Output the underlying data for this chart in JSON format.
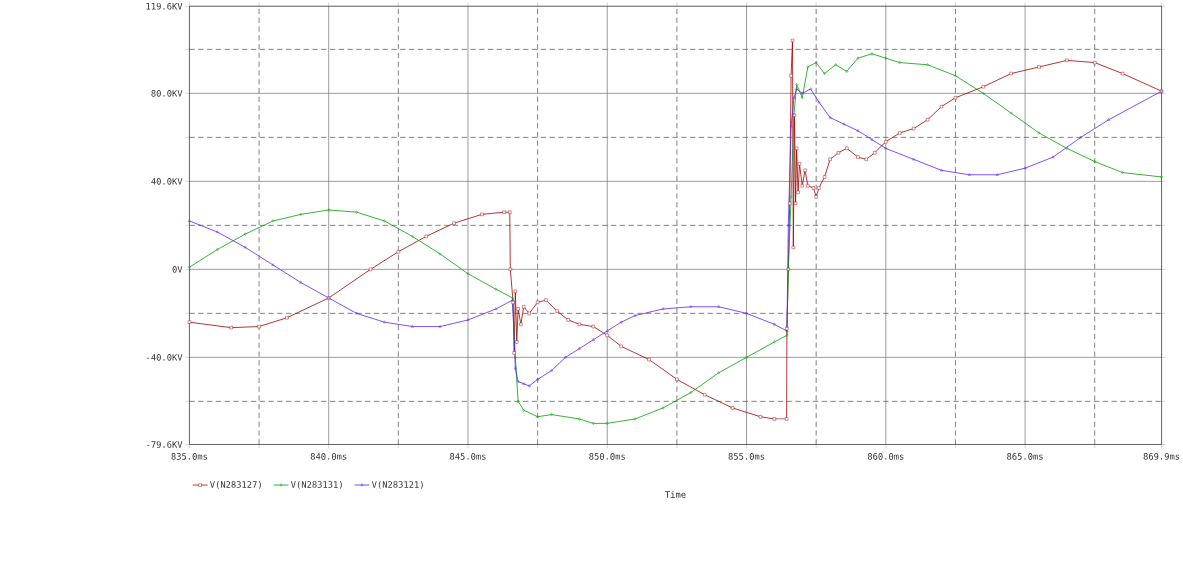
{
  "chart_data": {
    "type": "line",
    "xlabel": "Time",
    "grid": true,
    "legend": "bottom left",
    "xlim": [
      835.0,
      869.9
    ],
    "ylim": [
      -79.6,
      119.6
    ],
    "xticks": [
      {
        "value": 835.0,
        "label": "835.0ms"
      },
      {
        "value": 837.5,
        "label": null
      },
      {
        "value": 840.0,
        "label": "840.0ms"
      },
      {
        "value": 842.5,
        "label": null
      },
      {
        "value": 845.0,
        "label": "845.0ms"
      },
      {
        "value": 847.5,
        "label": null
      },
      {
        "value": 850.0,
        "label": "850.0ms"
      },
      {
        "value": 852.5,
        "label": null
      },
      {
        "value": 855.0,
        "label": "855.0ms"
      },
      {
        "value": 857.5,
        "label": null
      },
      {
        "value": 860.0,
        "label": "860.0ms"
      },
      {
        "value": 862.5,
        "label": null
      },
      {
        "value": 865.0,
        "label": "865.0ms"
      },
      {
        "value": 867.5,
        "label": null
      },
      {
        "value": 869.9,
        "label": "869.9ms"
      }
    ],
    "yticks": [
      {
        "value": -79.6,
        "label": "-79.6KV"
      },
      {
        "value": -60,
        "label": null
      },
      {
        "value": -40,
        "label": "-40.0KV"
      },
      {
        "value": -20,
        "label": null
      },
      {
        "value": 0,
        "label": "0V"
      },
      {
        "value": 20,
        "label": null
      },
      {
        "value": 40,
        "label": "40.0KV"
      },
      {
        "value": 60,
        "label": null
      },
      {
        "value": 80,
        "label": "80.0KV"
      },
      {
        "value": 100,
        "label": null
      },
      {
        "value": 119.6,
        "label": "119.6KV"
      }
    ],
    "series": [
      {
        "name": "V(N283127)",
        "color": "#a00000",
        "marker": "square",
        "x": [
          835.0,
          836.5,
          837.5,
          838.5,
          840.0,
          841.5,
          842.5,
          843.5,
          844.5,
          845.5,
          846.3,
          846.5,
          846.52,
          846.62,
          846.66,
          846.7,
          846.75,
          846.8,
          846.9,
          847.0,
          847.2,
          847.5,
          847.8,
          848.2,
          848.6,
          849.0,
          849.5,
          850.0,
          850.5,
          851.5,
          852.5,
          853.5,
          854.5,
          855.5,
          856.0,
          856.44,
          856.45,
          856.5,
          856.55,
          856.6,
          856.65,
          856.68,
          856.72,
          856.76,
          856.8,
          856.85,
          856.9,
          857.0,
          857.1,
          857.2,
          857.4,
          857.5,
          857.6,
          857.8,
          858.0,
          858.3,
          858.6,
          859.0,
          859.3,
          859.6,
          860.0,
          860.5,
          861.0,
          861.5,
          862.0,
          862.5,
          863.5,
          864.5,
          865.5,
          866.5,
          867.5,
          868.5,
          869.9
        ],
        "values": [
          -24,
          -26.5,
          -26,
          -22,
          -13,
          0,
          8,
          15,
          21,
          25,
          26,
          26,
          0,
          -15,
          -38,
          -10,
          -33,
          -18,
          -25,
          -17,
          -20,
          -15,
          -14,
          -19,
          -23,
          -25,
          -26,
          -30,
          -35,
          -41,
          -50,
          -57,
          -63,
          -67,
          -68,
          -68,
          -27,
          0,
          30,
          88,
          104,
          10,
          70,
          30,
          55,
          35,
          48,
          38,
          45,
          38,
          37,
          33,
          37,
          42,
          50,
          53,
          55,
          51,
          50,
          53,
          58,
          62,
          64,
          68,
          74,
          78,
          83,
          89,
          92,
          95,
          94,
          89,
          81
        ]
      },
      {
        "name": "V(N283131)",
        "color": "#00a000",
        "marker": "diamond",
        "x": [
          835.0,
          836.0,
          837.0,
          838.0,
          839.0,
          840.0,
          841.0,
          842.0,
          843.0,
          844.0,
          845.0,
          846.0,
          846.6,
          846.7,
          846.8,
          847.0,
          847.5,
          848.0,
          849.0,
          849.5,
          850.0,
          851.0,
          852.0,
          853.0,
          854.0,
          855.0,
          856.0,
          856.45,
          856.5,
          856.6,
          856.7,
          856.8,
          857.0,
          857.2,
          857.5,
          857.8,
          858.2,
          858.6,
          859.0,
          859.5,
          860.0,
          860.5,
          861.5,
          862.5,
          863.5,
          864.5,
          865.5,
          866.5,
          867.5,
          868.5,
          869.9
        ],
        "values": [
          1,
          9,
          16,
          22,
          25,
          27,
          26,
          22,
          15,
          7,
          -2,
          -9,
          -13,
          -40,
          -60,
          -64,
          -67,
          -66,
          -68,
          -70,
          -70,
          -68,
          -63,
          -56,
          -47,
          -40,
          -33,
          -30,
          0,
          33,
          70,
          84,
          78,
          92,
          94,
          89,
          93,
          90,
          96,
          98,
          96,
          94,
          93,
          88,
          80,
          71,
          62,
          55,
          49,
          44,
          42
        ]
      },
      {
        "name": "V(N283121)",
        "color": "#6020ff",
        "marker": "triangle",
        "x": [
          835.0,
          836.0,
          837.0,
          838.0,
          839.0,
          840.0,
          841.0,
          842.0,
          843.0,
          844.0,
          845.0,
          846.0,
          846.6,
          846.7,
          846.8,
          847.0,
          847.2,
          847.5,
          848.0,
          848.5,
          849.0,
          849.5,
          850.0,
          850.5,
          851.0,
          852.0,
          853.0,
          854.0,
          855.0,
          856.0,
          856.45,
          856.5,
          856.6,
          856.7,
          856.8,
          857.0,
          857.3,
          857.6,
          858.0,
          858.5,
          859.0,
          859.5,
          860.0,
          861.0,
          862.0,
          863.0,
          864.0,
          865.0,
          866.0,
          867.0,
          868.0,
          869.9
        ],
        "values": [
          22,
          17,
          10,
          2,
          -6,
          -13,
          -20,
          -24,
          -26,
          -26,
          -23,
          -18,
          -14,
          -45,
          -51,
          -52,
          -53,
          -50,
          -46,
          -40,
          -36,
          -32,
          -28,
          -24,
          -21,
          -18,
          -17,
          -17,
          -20,
          -25,
          -28,
          20,
          65,
          78,
          82,
          80,
          82,
          76,
          69,
          66,
          63,
          59,
          55,
          50,
          45,
          43,
          43,
          46,
          51,
          60,
          68,
          81
        ]
      }
    ]
  }
}
